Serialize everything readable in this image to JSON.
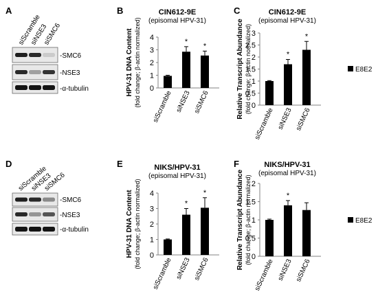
{
  "panels": {
    "A": {
      "letter": "A",
      "lanes": [
        "siScramble",
        "siNSE3",
        "siSMC6"
      ],
      "bands": [
        "-SMC6",
        "-NSE3",
        "-α-tubulin"
      ],
      "intensity": [
        [
          0.95,
          0.9,
          0.15
        ],
        [
          0.9,
          0.35,
          0.85
        ],
        [
          1.0,
          1.0,
          1.0
        ]
      ]
    },
    "D": {
      "letter": "D",
      "lanes": [
        "siScramble",
        "siNSE3",
        "siSMC6"
      ],
      "bands": [
        "-SMC6",
        "-NSE3",
        "-α-tubulin"
      ],
      "intensity": [
        [
          0.95,
          0.9,
          0.45
        ],
        [
          0.9,
          0.4,
          0.7
        ],
        [
          1.0,
          1.0,
          1.0
        ]
      ]
    }
  },
  "legend": {
    "label": "E8E2",
    "color": "#000000"
  },
  "chart_data": [
    {
      "letter": "B",
      "type": "bar",
      "title": "CIN612-9E",
      "subtitle": "(episomal HPV-31)",
      "ylabel": "HPV-31 DNA Content",
      "ylabel_sub": "(fold change; β-actin normalized)",
      "categories": [
        "siScramble",
        "siNSE3",
        "siSMC6"
      ],
      "values": [
        0.95,
        2.85,
        2.55
      ],
      "errors": [
        0.05,
        0.4,
        0.35
      ],
      "significant": [
        "",
        "*",
        "*"
      ],
      "ylim": [
        0,
        4
      ],
      "yticks": [
        0,
        1,
        2,
        3,
        4
      ]
    },
    {
      "letter": "C",
      "type": "bar",
      "title": "CIN612-9E",
      "subtitle": "(episomal HPV-31)",
      "ylabel": "Relative Transcript Abundance",
      "ylabel_sub": "(fold change; β-actin normalized)",
      "categories": [
        "siScramble",
        "siNSE3",
        "siSMC6"
      ],
      "values": [
        1.0,
        1.7,
        2.3
      ],
      "errors": [
        0.02,
        0.2,
        0.35
      ],
      "significant": [
        "",
        "*",
        "*"
      ],
      "ylim": [
        0,
        3
      ],
      "yticks": [
        0,
        0.5,
        1,
        1.5,
        2,
        2.5,
        3
      ]
    },
    {
      "letter": "E",
      "type": "bar",
      "title": "NIKS/HPV-31",
      "subtitle": "(episomal HPV-31)",
      "ylabel": "HPV-31 DNA Content",
      "ylabel_sub": "(fold change; β-actin normalized)",
      "categories": [
        "siScramble",
        "siNSE3",
        "siSMC6"
      ],
      "values": [
        1.0,
        2.6,
        3.05
      ],
      "errors": [
        0.03,
        0.4,
        0.65
      ],
      "significant": [
        "",
        "*",
        "*"
      ],
      "ylim": [
        0,
        4
      ],
      "yticks": [
        0,
        1,
        2,
        3,
        4
      ]
    },
    {
      "letter": "F",
      "type": "bar",
      "title": "NIKS/HPV-31",
      "subtitle": "(episomal HPV-31)",
      "ylabel": "Relative Transcript Abundance",
      "ylabel_sub": "(fold change; β-actin normalized)",
      "categories": [
        "siScramble",
        "siNSE3",
        "siSMC6"
      ],
      "values": [
        1.0,
        1.4,
        1.27
      ],
      "errors": [
        0.02,
        0.13,
        0.2
      ],
      "significant": [
        "",
        "*",
        ""
      ],
      "ylim": [
        0,
        2
      ],
      "yticks": [
        0,
        0.5,
        1,
        1.5,
        2
      ]
    }
  ]
}
